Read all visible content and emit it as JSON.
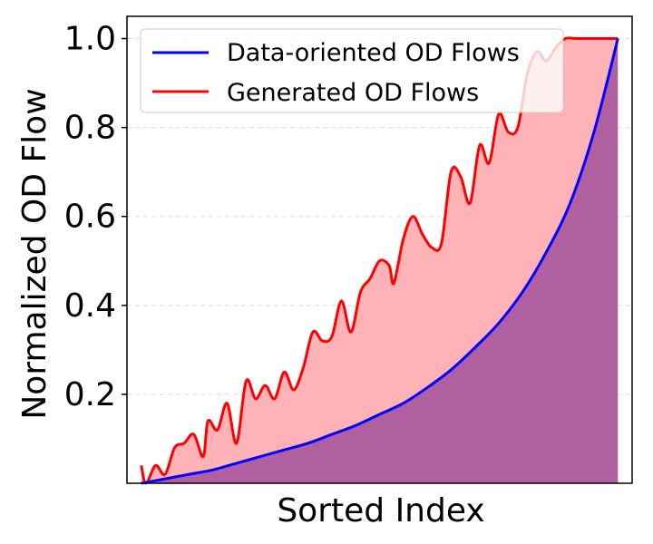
{
  "chart_data": {
    "type": "area",
    "xlabel": "Sorted Index",
    "ylabel": "Normalized OD Flow",
    "xlim": [
      -3,
      103
    ],
    "ylim": [
      0,
      1.05
    ],
    "yticks": [
      "0.2",
      "0.4",
      "0.6",
      "0.8",
      "1.0"
    ],
    "ytick_values": [
      0.2,
      0.4,
      0.6,
      0.8,
      1.0
    ],
    "grid": "y-dashed",
    "legend_position": "top-left",
    "series": [
      {
        "name": "Data-oriented OD Flows",
        "color": "#0000ff",
        "fill": "#b060a0",
        "x": [
          0,
          5,
          10,
          15,
          20,
          25,
          30,
          35,
          40,
          45,
          50,
          55,
          60,
          65,
          70,
          75,
          80,
          85,
          90,
          95,
          100
        ],
        "values": [
          0.0,
          0.01,
          0.02,
          0.03,
          0.045,
          0.06,
          0.075,
          0.09,
          0.11,
          0.13,
          0.155,
          0.18,
          0.215,
          0.255,
          0.305,
          0.36,
          0.43,
          0.52,
          0.63,
          0.79,
          1.0
        ]
      },
      {
        "name": "Generated OD Flows",
        "color": "#ff0000",
        "fill": "#ffb3b6",
        "x": [
          0,
          1,
          3,
          5,
          7,
          9,
          11,
          13,
          14,
          16,
          18,
          20,
          22,
          24,
          26,
          28,
          30,
          32,
          34,
          36,
          38,
          40,
          42,
          44,
          46,
          48,
          50,
          52,
          53,
          55,
          57,
          59,
          61,
          63,
          65,
          67,
          69,
          71,
          73,
          75,
          77,
          79,
          81,
          83,
          85,
          87,
          89,
          91,
          93,
          95,
          96,
          97,
          98,
          100
        ],
        "values": [
          0.04,
          0.0,
          0.04,
          0.02,
          0.08,
          0.09,
          0.11,
          0.06,
          0.14,
          0.12,
          0.18,
          0.09,
          0.23,
          0.19,
          0.22,
          0.19,
          0.25,
          0.21,
          0.26,
          0.34,
          0.32,
          0.33,
          0.41,
          0.34,
          0.43,
          0.46,
          0.5,
          0.49,
          0.45,
          0.55,
          0.6,
          0.56,
          0.53,
          0.54,
          0.7,
          0.69,
          0.63,
          0.76,
          0.72,
          0.83,
          0.79,
          0.8,
          0.92,
          0.97,
          0.95,
          0.98,
          1.0,
          1.0,
          1.0,
          1.0,
          1.0,
          1.0,
          1.0,
          1.0
        ]
      }
    ]
  }
}
